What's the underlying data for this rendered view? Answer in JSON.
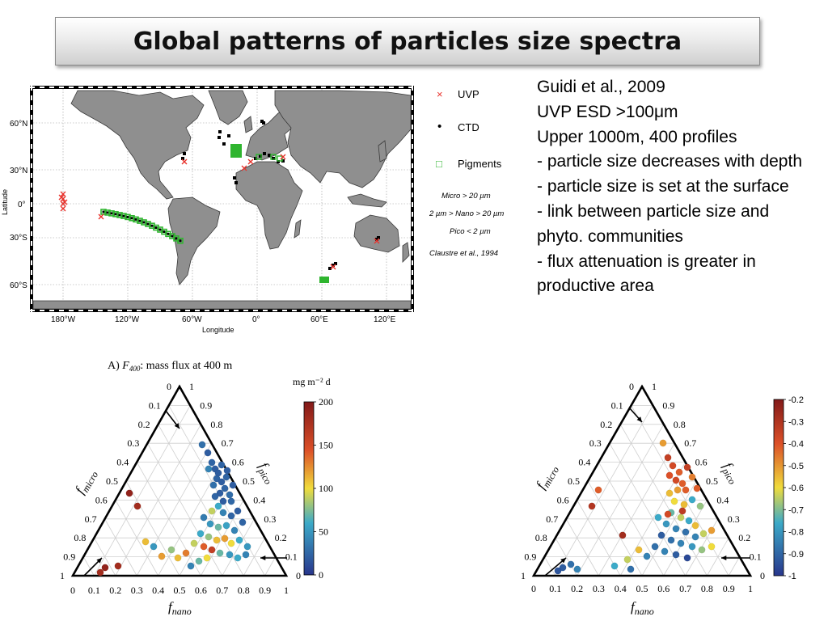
{
  "title": "Global patterns of particles size spectra",
  "notes": [
    "Guidi et al., 2009",
    "UVP ESD >100μm",
    "Upper 1000m, 400 profiles",
    "- particle size decreases with depth",
    "- particle size is set at the surface",
    "- link between particle size and phyto. communities",
    "- flux attenuation is greater in productive area"
  ],
  "map": {
    "lat_labels": [
      "60°N",
      "30°N",
      "0°",
      "30°S",
      "60°S"
    ],
    "lon_labels": [
      "180°W",
      "120°W",
      "60°W",
      "0°",
      "60°E",
      "120°E"
    ],
    "ylabel": "Latitude",
    "xlabel": "Longitude",
    "legend": [
      {
        "symbol": "×",
        "label": "UVP",
        "color": "#e8322c"
      },
      {
        "symbol": "•",
        "label": "CTD",
        "color": "#000000"
      },
      {
        "symbol": "□",
        "label": "Pigments",
        "color": "#2fb52f"
      }
    ],
    "size_classes": [
      "Micro > 20 µm",
      "2 µm > Nano > 20 µm",
      "Pico < 2 µm"
    ],
    "citation": "Claustre et al., 1994",
    "ocean_color": "#ffffff",
    "land_color": "#8f8f8f"
  },
  "ternary_left": {
    "title_prefix": "A) ",
    "title_var": "F",
    "title_sub": "400",
    "title_suffix": ": mass flux at 400 m",
    "unit": "mg m⁻² d",
    "colorbar_ticks": [
      "200",
      "150",
      "100",
      "50",
      "0"
    ],
    "axis_micro": "f",
    "axis_micro_sub": "micro",
    "axis_pico": "f",
    "axis_pico_sub": "pico",
    "axis_nano": "f",
    "axis_nano_sub": "nano",
    "ticks": [
      "0",
      "0.1",
      "0.2",
      "0.3",
      "0.4",
      "0.5",
      "0.6",
      "0.7",
      "0.8",
      "0.9",
      "1"
    ]
  },
  "ternary_right": {
    "colorbar_ticks": [
      "-0.2",
      "-0.3",
      "-0.4",
      "-0.5",
      "-0.6",
      "-0.7",
      "-0.8",
      "-0.9",
      "-1"
    ],
    "axis_micro": "f",
    "axis_micro_sub": "micro",
    "axis_pico": "f",
    "axis_pico_sub": "pico",
    "axis_nano": "f",
    "axis_nano_sub": "nano",
    "ticks": [
      "0",
      "0.1",
      "0.2",
      "0.3",
      "0.4",
      "0.5",
      "0.6",
      "0.7",
      "0.8",
      "0.9",
      "1"
    ]
  }
}
